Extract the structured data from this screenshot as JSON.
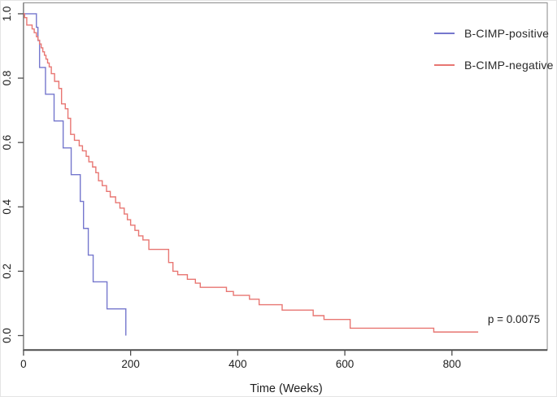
{
  "chart_data": {
    "type": "line",
    "chart_style": "kaplan-meier-step",
    "title": "",
    "xlabel": "Time (Weeks)",
    "ylabel": "",
    "xlim": [
      0,
      978
    ],
    "ylim": [
      0,
      1
    ],
    "x_ticks": [
      0,
      200,
      400,
      600,
      800
    ],
    "y_ticks": [
      "0.0",
      "0.2",
      "0.4",
      "0.6",
      "0.8",
      "1.0"
    ],
    "grid": false,
    "legend_position": "top-right",
    "annotation": {
      "text": "p = 0.0075"
    },
    "series": [
      {
        "name": "B-CIMP-positive",
        "color": "#7577cd",
        "start": [
          0,
          1.0
        ],
        "steps": [
          [
            24,
            0.958
          ],
          [
            27,
            0.917
          ],
          [
            30,
            0.833
          ],
          [
            41,
            0.75
          ],
          [
            57,
            0.667
          ],
          [
            74,
            0.583
          ],
          [
            89,
            0.5
          ],
          [
            106,
            0.417
          ],
          [
            112,
            0.333
          ],
          [
            121,
            0.25
          ],
          [
            130,
            0.167
          ],
          [
            156,
            0.083
          ],
          [
            191,
            0.0
          ]
        ],
        "end_time": 191
      },
      {
        "name": "B-CIMP-negative",
        "color": "#e87672",
        "start": [
          0,
          1.0
        ],
        "steps": [
          [
            2,
            0.988
          ],
          [
            6,
            0.965
          ],
          [
            16,
            0.953
          ],
          [
            20,
            0.941
          ],
          [
            24,
            0.929
          ],
          [
            27,
            0.918
          ],
          [
            30,
            0.906
          ],
          [
            33,
            0.894
          ],
          [
            36,
            0.882
          ],
          [
            39,
            0.871
          ],
          [
            42,
            0.859
          ],
          [
            45,
            0.847
          ],
          [
            48,
            0.835
          ],
          [
            52,
            0.814
          ],
          [
            58,
            0.79
          ],
          [
            66,
            0.768
          ],
          [
            71,
            0.72
          ],
          [
            78,
            0.705
          ],
          [
            83,
            0.675
          ],
          [
            88,
            0.625
          ],
          [
            95,
            0.607
          ],
          [
            104,
            0.59
          ],
          [
            110,
            0.574
          ],
          [
            117,
            0.557
          ],
          [
            122,
            0.54
          ],
          [
            129,
            0.524
          ],
          [
            135,
            0.506
          ],
          [
            140,
            0.481
          ],
          [
            147,
            0.466
          ],
          [
            155,
            0.448
          ],
          [
            162,
            0.431
          ],
          [
            172,
            0.413
          ],
          [
            180,
            0.396
          ],
          [
            188,
            0.378
          ],
          [
            194,
            0.36
          ],
          [
            200,
            0.343
          ],
          [
            208,
            0.327
          ],
          [
            215,
            0.31
          ],
          [
            223,
            0.297
          ],
          [
            234,
            0.268
          ],
          [
            271,
            0.227
          ],
          [
            279,
            0.2
          ],
          [
            288,
            0.189
          ],
          [
            306,
            0.175
          ],
          [
            321,
            0.163
          ],
          [
            330,
            0.15
          ],
          [
            379,
            0.137
          ],
          [
            392,
            0.125
          ],
          [
            422,
            0.113
          ],
          [
            440,
            0.096
          ],
          [
            483,
            0.079
          ],
          [
            541,
            0.062
          ],
          [
            561,
            0.05
          ],
          [
            610,
            0.023
          ],
          [
            766,
            0.011
          ]
        ],
        "end_time": 849
      }
    ]
  }
}
